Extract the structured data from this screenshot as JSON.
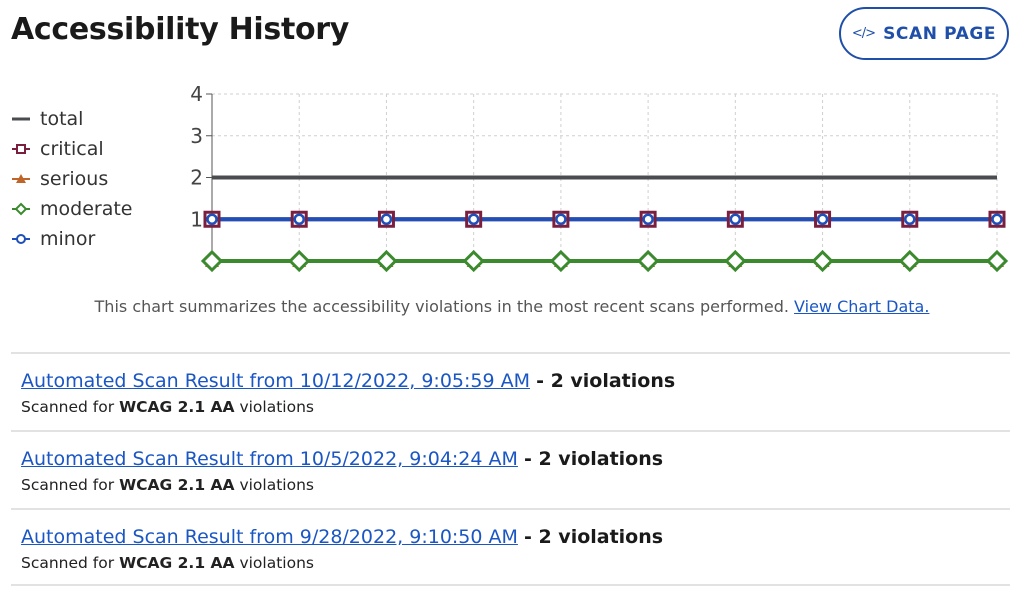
{
  "page": {
    "title": "Accessibility History",
    "scan_button": {
      "icon": "code-icon",
      "icon_glyph": "</>",
      "label": "SCAN PAGE"
    }
  },
  "legend": [
    {
      "label": "total",
      "marker": "line",
      "color": "#4a4c50"
    },
    {
      "label": "critical",
      "marker": "square",
      "color": "#7a1f3d"
    },
    {
      "label": "serious",
      "marker": "triangle",
      "color": "#c0652a"
    },
    {
      "label": "moderate",
      "marker": "diamond",
      "color": "#3b8a2e"
    },
    {
      "label": "minor",
      "marker": "circle",
      "color": "#1f4fb8"
    }
  ],
  "chart_data": {
    "type": "line",
    "x": [
      1,
      2,
      3,
      4,
      5,
      6,
      7,
      8,
      9,
      10
    ],
    "ylim": [
      0,
      4
    ],
    "yticks": [
      "1",
      "2",
      "3",
      "4"
    ],
    "grid": true,
    "legend_position": "left",
    "series": [
      {
        "name": "total",
        "color": "#4a4c50",
        "marker": "none",
        "values": [
          2,
          2,
          2,
          2,
          2,
          2,
          2,
          2,
          2,
          2
        ]
      },
      {
        "name": "critical",
        "color": "#7a1f3d",
        "marker": "square",
        "values": [
          1,
          1,
          1,
          1,
          1,
          1,
          1,
          1,
          1,
          1
        ]
      },
      {
        "name": "serious",
        "color": "#c0652a",
        "marker": "triangle",
        "values": [
          0,
          0,
          0,
          0,
          0,
          0,
          0,
          0,
          0,
          0
        ]
      },
      {
        "name": "moderate",
        "color": "#3b8a2e",
        "marker": "diamond",
        "values": [
          0,
          0,
          0,
          0,
          0,
          0,
          0,
          0,
          0,
          0
        ]
      },
      {
        "name": "minor",
        "color": "#1f4fb8",
        "marker": "circle",
        "values": [
          1,
          1,
          1,
          1,
          1,
          1,
          1,
          1,
          1,
          1
        ]
      }
    ]
  },
  "caption": {
    "text": "This chart summarizes the accessibility violations in the most recent scans performed.",
    "link": "View Chart Data."
  },
  "results": [
    {
      "link": "Automated Scan Result from 10/12/2022, 9:05:59 AM",
      "violations": "- 2 violations",
      "prefix": "Scanned for",
      "standard": "WCAG 2.1 AA",
      "suffix": "violations"
    },
    {
      "link": "Automated Scan Result from 10/5/2022, 9:04:24 AM",
      "violations": "- 2 violations",
      "prefix": "Scanned for",
      "standard": "WCAG 2.1 AA",
      "suffix": "violations"
    },
    {
      "link": "Automated Scan Result from 9/28/2022, 9:10:50 AM",
      "violations": "- 2 violations",
      "prefix": "Scanned for",
      "standard": "WCAG 2.1 AA",
      "suffix": "violations"
    }
  ]
}
